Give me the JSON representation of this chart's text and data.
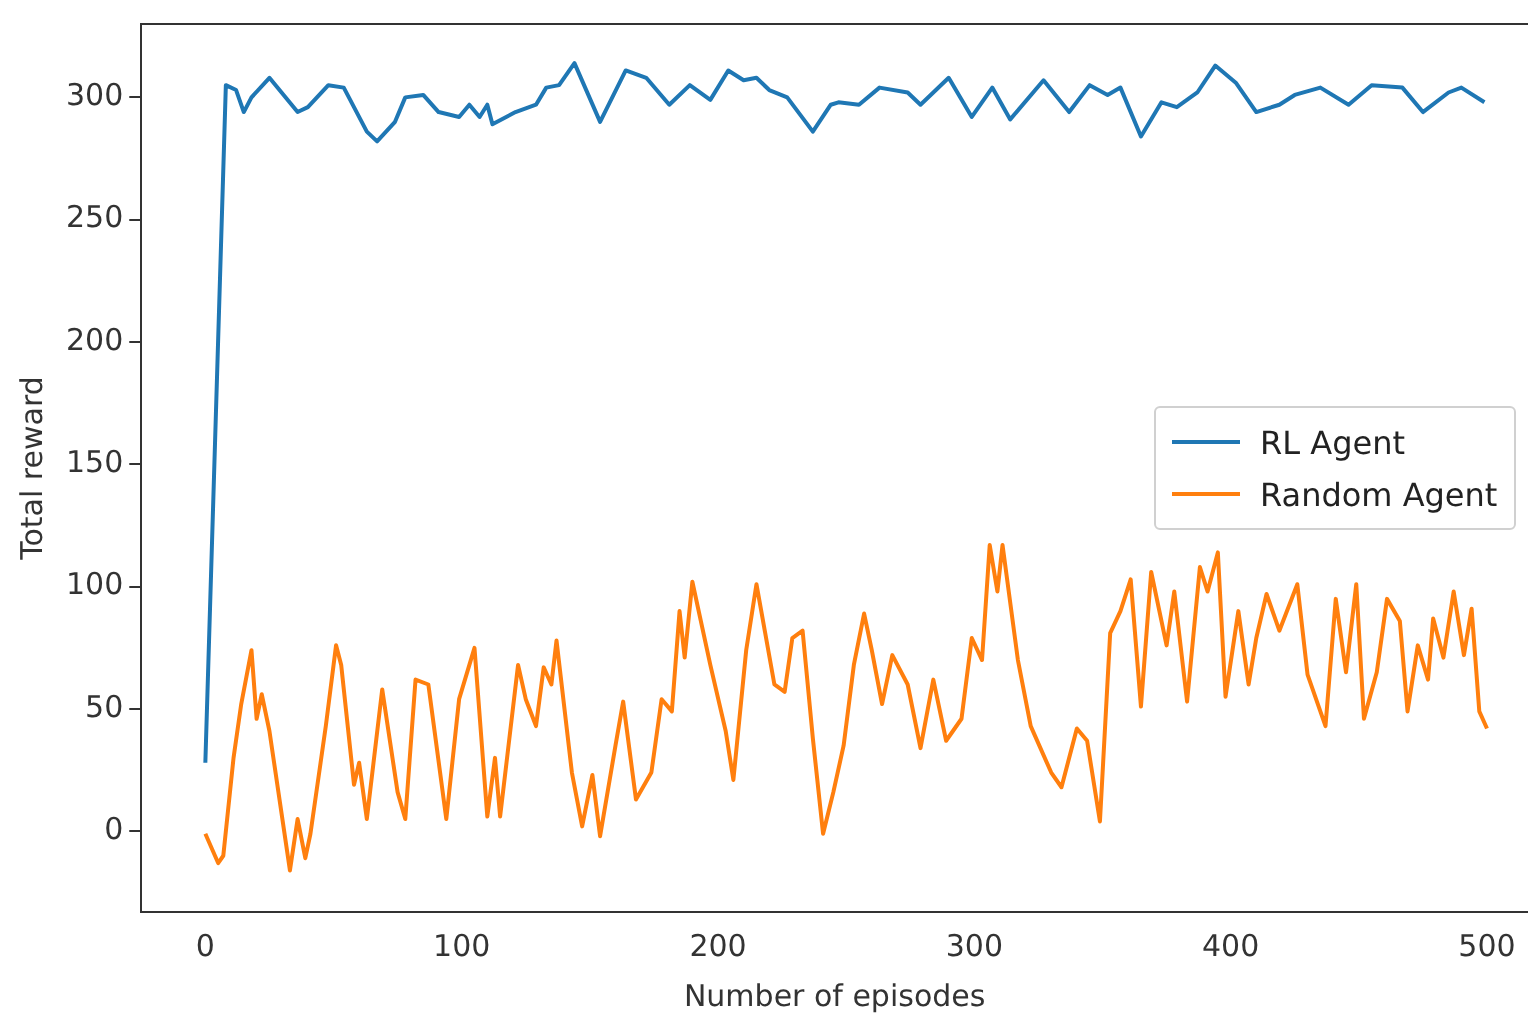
{
  "chart_data": {
    "type": "line",
    "xlabel": "Number of episodes",
    "ylabel": "Total reward",
    "xlim": [
      -25,
      516
    ],
    "xticks": [
      0,
      100,
      200,
      300,
      400,
      500
    ],
    "ylim": [
      -33,
      330
    ],
    "yticks": [
      0,
      50,
      100,
      150,
      200,
      250,
      300
    ],
    "grid": false,
    "legend": "right",
    "marker": "none",
    "line_style": "solid",
    "series": [
      {
        "name": "RL Agent",
        "color": "#1f77b4",
        "x": [
          0,
          8,
          12,
          15,
          18,
          25,
          36,
          40,
          48,
          54,
          63,
          67,
          74,
          78,
          85,
          91,
          99,
          103,
          107,
          110,
          112,
          121,
          129,
          133,
          138,
          144,
          154,
          164,
          172,
          181,
          189,
          197,
          204,
          210,
          215,
          220,
          227,
          237,
          244,
          247,
          255,
          263,
          274,
          279,
          290,
          299,
          307,
          314,
          327,
          337,
          345,
          352,
          357,
          365,
          373,
          379,
          387,
          394,
          402,
          410,
          419,
          425,
          435,
          446,
          455,
          467,
          475,
          485,
          490,
          499
        ],
        "values": [
          28,
          305,
          303,
          294,
          300,
          308,
          294,
          296,
          305,
          304,
          286,
          282,
          290,
          300,
          301,
          294,
          292,
          297,
          292,
          297,
          289,
          294,
          297,
          304,
          305,
          314,
          290,
          311,
          308,
          297,
          305,
          299,
          311,
          307,
          308,
          303,
          300,
          286,
          297,
          298,
          297,
          304,
          302,
          297,
          308,
          292,
          304,
          291,
          307,
          294,
          305,
          301,
          304,
          284,
          298,
          296,
          302,
          313,
          306,
          294,
          297,
          301,
          304,
          297,
          305,
          304,
          294,
          302,
          304,
          298
        ]
      },
      {
        "name": "Random Agent",
        "color": "#ff7f0e",
        "x": [
          0,
          5,
          7,
          11,
          14,
          18,
          20,
          22,
          25,
          33,
          36,
          39,
          41,
          47,
          51,
          53,
          58,
          60,
          63,
          69,
          75,
          78,
          82,
          87,
          94,
          99,
          105,
          110,
          113,
          115,
          122,
          125,
          129,
          132,
          135,
          137,
          143,
          147,
          151,
          154,
          160,
          163,
          168,
          174,
          178,
          182,
          185,
          187,
          190,
          197,
          203,
          206,
          211,
          215,
          222,
          226,
          229,
          233,
          237,
          241,
          245,
          249,
          253,
          257,
          260,
          264,
          268,
          274,
          279,
          284,
          289,
          295,
          299,
          303,
          306,
          309,
          311,
          317,
          322,
          330,
          334,
          340,
          344,
          349,
          353,
          357,
          361,
          365,
          369,
          375,
          378,
          383,
          388,
          391,
          395,
          398,
          403,
          407,
          410,
          414,
          419,
          426,
          430,
          437,
          441,
          445,
          449,
          452,
          457,
          461,
          466,
          469,
          473,
          477,
          479,
          483,
          487,
          491,
          494,
          497,
          500
        ],
        "values": [
          -1,
          -13,
          -10,
          30,
          52,
          74,
          46,
          56,
          41,
          -16,
          5,
          -11,
          -1,
          43,
          76,
          68,
          19,
          28,
          5,
          58,
          16,
          5,
          62,
          60,
          5,
          54,
          75,
          6,
          30,
          6,
          68,
          54,
          43,
          67,
          60,
          78,
          24,
          2,
          23,
          -2,
          35,
          53,
          13,
          24,
          54,
          49,
          90,
          71,
          102,
          68,
          41,
          21,
          74,
          101,
          60,
          57,
          79,
          82,
          38,
          -1,
          16,
          35,
          68,
          89,
          74,
          52,
          72,
          60,
          34,
          62,
          37,
          46,
          79,
          70,
          117,
          98,
          117,
          70,
          43,
          24,
          18,
          42,
          37,
          4,
          81,
          90,
          103,
          51,
          106,
          76,
          98,
          53,
          108,
          98,
          114,
          55,
          90,
          60,
          79,
          97,
          82,
          101,
          64,
          43,
          95,
          65,
          101,
          46,
          65,
          95,
          86,
          49,
          76,
          62,
          87,
          71,
          98,
          72,
          91,
          49,
          42
        ]
      }
    ]
  }
}
